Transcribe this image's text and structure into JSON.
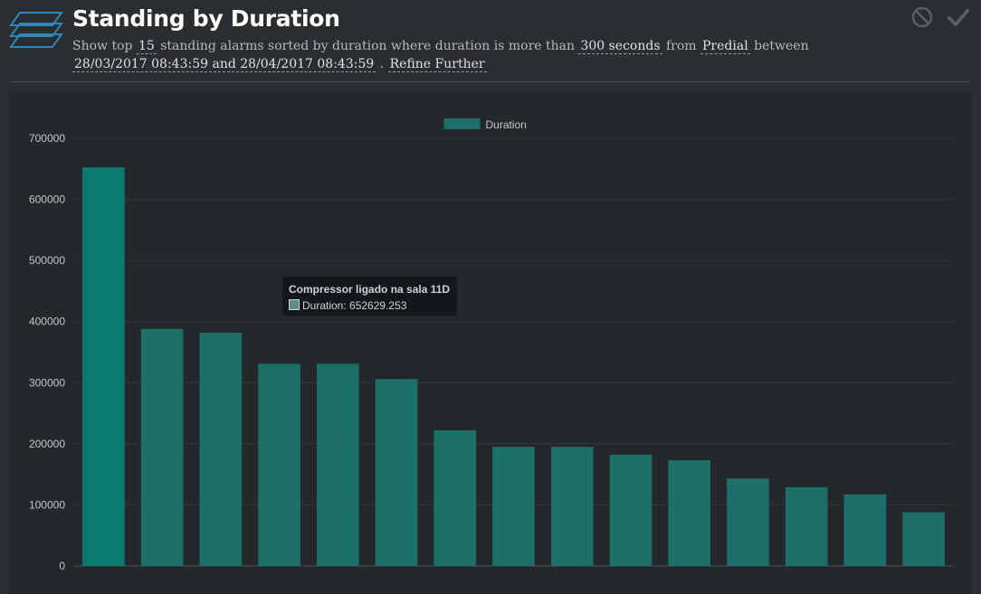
{
  "header": {
    "title": "Standing by Duration",
    "desc": {
      "t1": "Show top",
      "top_n": "15",
      "t2": "standing alarms sorted by duration where duration is more than",
      "threshold": "300 seconds",
      "t3": "from",
      "source": "Predial",
      "t4": "between",
      "range": "28/03/2017 08:43:59 and 28/04/2017 08:43:59",
      "t5": ".",
      "refine": "Refine Further"
    },
    "icons": {
      "logo": "stacked-layers-icon",
      "cancel": "cancel-icon",
      "confirm": "checkmark-icon"
    }
  },
  "tooltip": {
    "title": "Compressor ligado na sala 11D",
    "body": "Duration: 652629.253"
  },
  "chart_data": {
    "type": "bar",
    "legend_position": "top-center",
    "grid": true,
    "ylim": [
      0,
      700000
    ],
    "yticks": [
      "700000",
      "600000",
      "500000",
      "400000",
      "300000",
      "200000",
      "100000",
      "0"
    ],
    "series": [
      {
        "name": "Duration",
        "color": "#1c7068",
        "highlight_color": "#0a7a6e",
        "values": [
          652629.253,
          388000,
          382000,
          331000,
          331000,
          306000,
          222000,
          195000,
          195000,
          182000,
          173000,
          143000,
          129000,
          117000,
          88000
        ]
      }
    ],
    "highlighted_index": 0
  }
}
